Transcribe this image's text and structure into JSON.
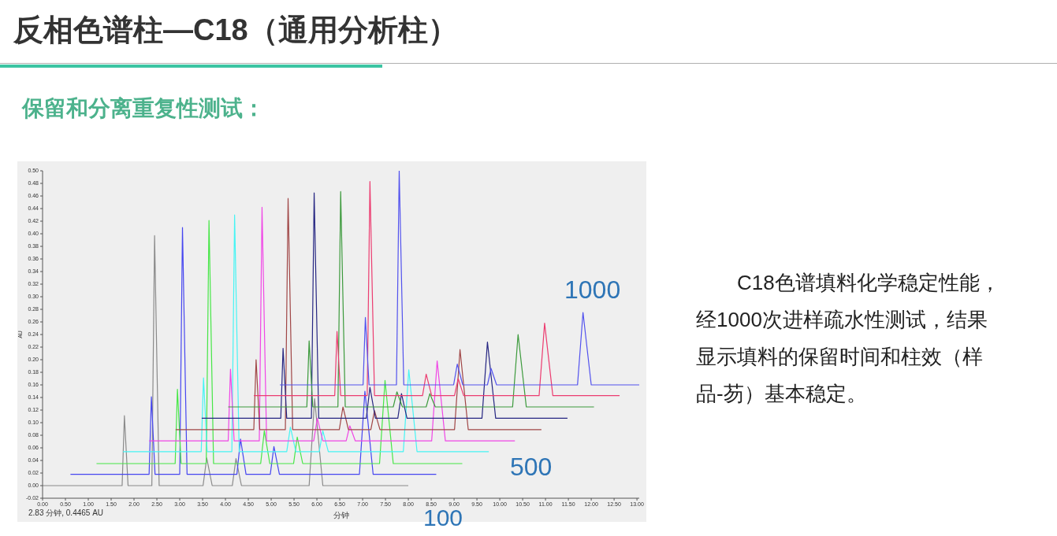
{
  "chart_data": {
    "type": "line",
    "title": "反相色谱柱—C18（通用分析柱）",
    "subtitle": "保留和分离重复性测试：",
    "xlabel": "分钟",
    "ylabel": "AU",
    "annotations": [
      "100",
      "500",
      "1000",
      "2.83 分钟, 0.4465 AU",
      "C18色谱填料化学稳定性能，经1000次进样疏水性测试，结果显示填料的保留时间和柱效（样品-芴）基本稳定。"
    ],
    "xlim": [
      0,
      13.05
    ],
    "ylim": [
      -0.02,
      0.5
    ],
    "marker": "none",
    "xticks": [
      {
        "value": 0,
        "label": "0.00"
      },
      {
        "value": 0.5,
        "label": "0.50"
      },
      {
        "value": 1,
        "label": "1.00"
      },
      {
        "value": 1.5,
        "label": "1.50"
      },
      {
        "value": 2,
        "label": "2.00"
      },
      {
        "value": 2.5,
        "label": "2.50"
      },
      {
        "value": 3,
        "label": "3.00"
      },
      {
        "value": 3.5,
        "label": "3.50"
      },
      {
        "value": 4,
        "label": "4.00"
      },
      {
        "value": 4.5,
        "label": "4.50"
      },
      {
        "value": 5,
        "label": "5.00"
      },
      {
        "value": 5.5,
        "label": "5.50"
      },
      {
        "value": 6,
        "label": "6.00"
      },
      {
        "value": 6.5,
        "label": "6.50"
      },
      {
        "value": 7,
        "label": "7.00"
      },
      {
        "value": 7.5,
        "label": "7.50"
      },
      {
        "value": 8,
        "label": "8.00"
      },
      {
        "value": 8.5,
        "label": "8.50"
      },
      {
        "value": 9,
        "label": "9.00"
      },
      {
        "value": 9.5,
        "label": "9.50"
      },
      {
        "value": 10,
        "label": "10.00"
      },
      {
        "value": 10.5,
        "label": "10.50"
      },
      {
        "value": 11,
        "label": "11.00"
      },
      {
        "value": 11.5,
        "label": "11.50"
      },
      {
        "value": 12,
        "label": "12.00"
      },
      {
        "value": 12.5,
        "label": "12.50"
      },
      {
        "value": 13,
        "label": "13.00"
      }
    ],
    "yticks": [
      {
        "value": -0.02,
        "label": "-0.02"
      },
      {
        "value": 0,
        "label": "0.00"
      },
      {
        "value": 0.02,
        "label": "0.02"
      },
      {
        "value": 0.04,
        "label": "0.04"
      },
      {
        "value": 0.06,
        "label": "0.06"
      },
      {
        "value": 0.08,
        "label": "0.08"
      },
      {
        "value": 0.1,
        "label": "0.10"
      },
      {
        "value": 0.12,
        "label": "0.12"
      },
      {
        "value": 0.14,
        "label": "0.14"
      },
      {
        "value": 0.16,
        "label": "0.16"
      },
      {
        "value": 0.18,
        "label": "0.18"
      },
      {
        "value": 0.2,
        "label": "0.20"
      },
      {
        "value": 0.22,
        "label": "0.22"
      },
      {
        "value": 0.24,
        "label": "0.24"
      },
      {
        "value": 0.26,
        "label": "0.26"
      },
      {
        "value": 0.28,
        "label": "0.28"
      },
      {
        "value": 0.3,
        "label": "0.30"
      },
      {
        "value": 0.32,
        "label": "0.32"
      },
      {
        "value": 0.34,
        "label": "0.34"
      },
      {
        "value": 0.36,
        "label": "0.36"
      },
      {
        "value": 0.38,
        "label": "0.38"
      },
      {
        "value": 0.4,
        "label": "0.40"
      },
      {
        "value": 0.42,
        "label": "0.42"
      },
      {
        "value": 0.44,
        "label": "0.44"
      },
      {
        "value": 0.46,
        "label": "0.46"
      },
      {
        "value": 0.48,
        "label": "0.48"
      },
      {
        "value": 0.5,
        "label": "0.50"
      }
    ],
    "series": [
      {
        "color": "#8a8a8a",
        "x": [
          0,
          1.74,
          1.79,
          1.87,
          2.39,
          2.45,
          2.55,
          3.51,
          3.59,
          3.71,
          4.15,
          4.23,
          4.35,
          5.83,
          5.95,
          6.13,
          8.0
        ],
        "values": [
          0,
          0,
          0.111,
          0,
          0,
          0.397,
          0,
          0,
          0.044,
          0,
          0,
          0.043,
          0,
          0,
          0.138,
          0,
          0
        ]
      },
      {
        "color": "#4646f0",
        "x": [
          0.61,
          2.33,
          2.38,
          2.46,
          3.0,
          3.06,
          3.16,
          4.25,
          4.33,
          4.45,
          4.98,
          5.06,
          5.18,
          6.93,
          7.05,
          7.23,
          8.61
        ],
        "values": [
          0.018,
          0.018,
          0.141,
          0.018,
          0.018,
          0.41,
          0.018,
          0.018,
          0.074,
          0.018,
          0.018,
          0.062,
          0.018,
          0.018,
          0.15,
          0.018,
          0.018
        ]
      },
      {
        "color": "#46e646",
        "x": [
          1.18,
          2.9,
          2.95,
          3.03,
          3.58,
          3.64,
          3.74,
          4.77,
          4.85,
          4.97,
          5.49,
          5.57,
          5.69,
          7.37,
          7.49,
          7.67,
          9.18
        ],
        "values": [
          0.035,
          0.035,
          0.153,
          0.035,
          0.035,
          0.421,
          0.035,
          0.035,
          0.087,
          0.035,
          0.035,
          0.077,
          0.035,
          0.035,
          0.167,
          0.035,
          0.035
        ]
      },
      {
        "color": "#46f4f4",
        "x": [
          1.76,
          3.47,
          3.52,
          3.6,
          4.14,
          4.2,
          4.3,
          5.34,
          5.42,
          5.54,
          6.05,
          6.13,
          6.25,
          7.89,
          8.01,
          8.19,
          9.76
        ],
        "values": [
          0.054,
          0.054,
          0.171,
          0.054,
          0.054,
          0.43,
          0.054,
          0.054,
          0.093,
          0.054,
          0.054,
          0.087,
          0.054,
          0.054,
          0.184,
          0.054,
          0.054
        ]
      },
      {
        "color": "#f046e6",
        "x": [
          2.33,
          4.06,
          4.11,
          4.19,
          4.74,
          4.8,
          4.9,
          5.93,
          6.01,
          6.13,
          6.64,
          6.72,
          6.84,
          8.51,
          8.63,
          8.81,
          10.33
        ],
        "values": [
          0.071,
          0.071,
          0.185,
          0.071,
          0.071,
          0.442,
          0.071,
          0.071,
          0.107,
          0.071,
          0.071,
          0.095,
          0.071,
          0.071,
          0.198,
          0.071,
          0.071
        ]
      },
      {
        "color": "#a04646",
        "x": [
          2.91,
          4.62,
          4.67,
          4.75,
          5.31,
          5.37,
          5.47,
          6.49,
          6.57,
          6.69,
          7.18,
          7.26,
          7.38,
          9.01,
          9.13,
          9.31,
          10.91
        ],
        "values": [
          0.089,
          0.089,
          0.2,
          0.089,
          0.089,
          0.456,
          0.089,
          0.089,
          0.125,
          0.089,
          0.089,
          0.119,
          0.089,
          0.089,
          0.216,
          0.089,
          0.089
        ]
      },
      {
        "color": "#262682",
        "x": [
          3.48,
          5.21,
          5.26,
          5.34,
          5.88,
          5.94,
          6.04,
          7.08,
          7.16,
          7.28,
          7.77,
          7.85,
          7.97,
          9.61,
          9.73,
          9.91,
          11.48
        ],
        "values": [
          0.107,
          0.107,
          0.218,
          0.107,
          0.107,
          0.465,
          0.107,
          0.107,
          0.156,
          0.107,
          0.107,
          0.146,
          0.107,
          0.107,
          0.228,
          0.107,
          0.107
        ]
      },
      {
        "color": "#3c9a3c",
        "x": [
          4.06,
          5.78,
          5.83,
          5.91,
          6.46,
          6.52,
          6.62,
          7.67,
          7.75,
          7.87,
          8.39,
          8.47,
          8.59,
          10.28,
          10.4,
          10.58,
          12.06
        ],
        "values": [
          0.125,
          0.125,
          0.23,
          0.125,
          0.125,
          0.467,
          0.125,
          0.125,
          0.149,
          0.125,
          0.125,
          0.146,
          0.125,
          0.125,
          0.24,
          0.125,
          0.125
        ]
      },
      {
        "color": "#ec3c70",
        "x": [
          4.62,
          6.39,
          6.44,
          6.52,
          7.1,
          7.16,
          7.26,
          8.31,
          8.39,
          8.51,
          9.01,
          9.09,
          9.21,
          10.86,
          10.98,
          11.16,
          12.62
        ],
        "values": [
          0.143,
          0.143,
          0.245,
          0.143,
          0.143,
          0.483,
          0.143,
          0.143,
          0.177,
          0.143,
          0.143,
          0.17,
          0.143,
          0.143,
          0.258,
          0.143,
          0.143
        ]
      },
      {
        "color": "#5252ee",
        "x": [
          5.19,
          7.01,
          7.06,
          7.14,
          7.74,
          7.8,
          7.9,
          8.99,
          9.07,
          9.19,
          9.73,
          9.81,
          9.93,
          11.7,
          11.82,
          12.0,
          13.05
        ],
        "values": [
          0.16,
          0.16,
          0.267,
          0.16,
          0.16,
          0.5,
          0.16,
          0.16,
          0.193,
          0.16,
          0.16,
          0.186,
          0.16,
          0.16,
          0.275,
          0.16,
          0.16
        ]
      }
    ]
  }
}
